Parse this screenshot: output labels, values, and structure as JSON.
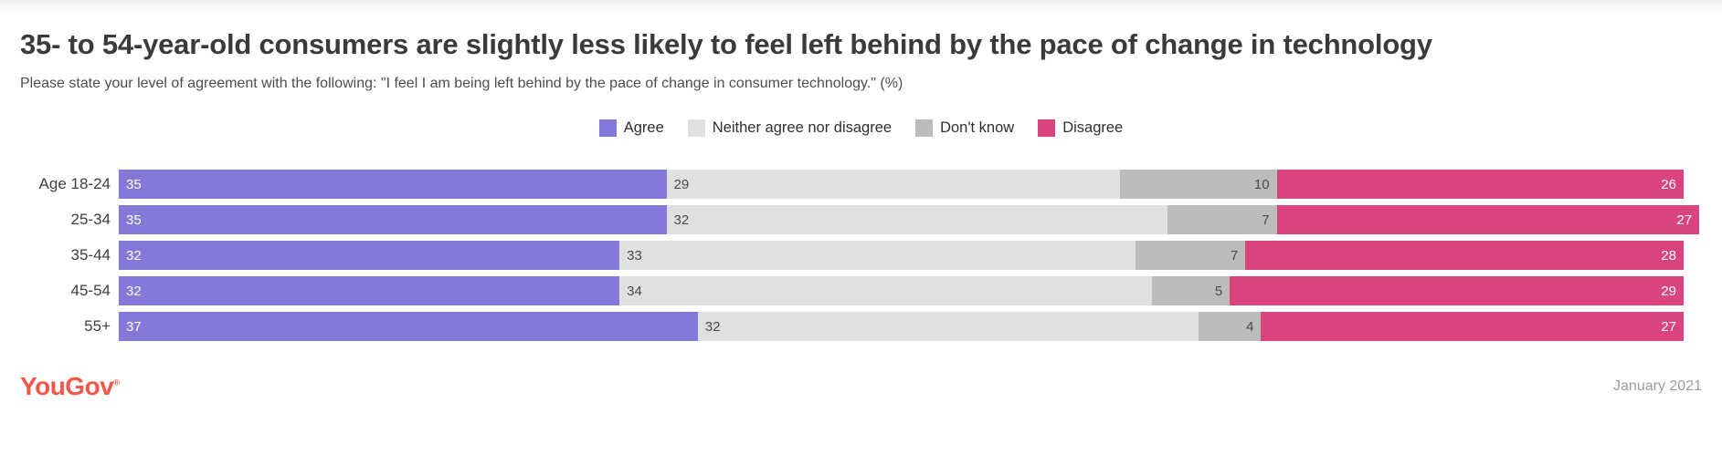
{
  "page": {
    "title": "35- to 54-year-old consumers are slightly less likely to feel left behind by the pace of change in technology",
    "subtitle": "Please state your level of agreement with the following: \"I feel I am being left behind by the pace of change in consumer technology.\" (%)",
    "footer": {
      "brand": "YouGov",
      "trademark": "®",
      "date": "January 2021"
    }
  },
  "colors": {
    "agree": "#8279d9",
    "neither": "#e0e0e0",
    "dont_know": "#bcbcbc",
    "disagree": "#d9437e",
    "brand": "#f4564a",
    "title_text": "#3a3a3a",
    "muted_text": "#9c9c9c"
  },
  "chart_data": {
    "type": "bar",
    "subtype": "horizontal-stacked",
    "unit": "%",
    "xlim": [
      0,
      100
    ],
    "legend_position": "top-center",
    "grid": false,
    "categories": [
      "Age 18-24",
      "25-34",
      "35-44",
      "45-54",
      "55+"
    ],
    "series": [
      {
        "name": "Agree",
        "color": "#8279d9",
        "values": [
          35,
          35,
          32,
          32,
          37
        ],
        "value_label_color": "#ffffff",
        "value_label_align": "left"
      },
      {
        "name": "Neither agree nor disagree",
        "color": "#e0e0e0",
        "values": [
          29,
          32,
          33,
          34,
          32
        ],
        "value_label_color": "#4a4a4a",
        "value_label_align": "left"
      },
      {
        "name": "Don't know",
        "color": "#bcbcbc",
        "values": [
          10,
          7,
          7,
          5,
          4
        ],
        "value_label_color": "#4a4a4a",
        "value_label_align": "right"
      },
      {
        "name": "Disagree",
        "color": "#d9437e",
        "values": [
          26,
          27,
          28,
          29,
          27
        ],
        "value_label_color": "#ffffff",
        "value_label_align": "right"
      }
    ]
  }
}
